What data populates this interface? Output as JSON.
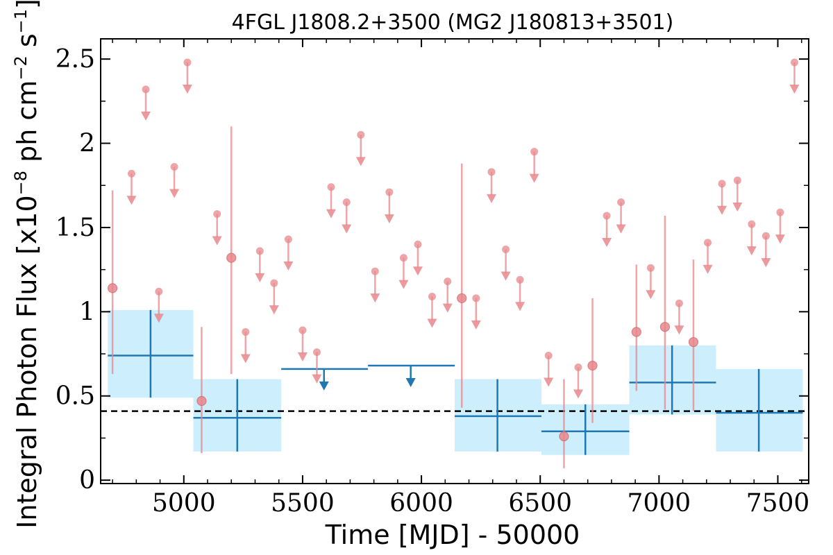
{
  "chart_data": {
    "type": "scatter",
    "title": "4FGL J1808.2+3500 (MG2 J180813+3501)",
    "xlabel": "Time [MJD] - 50000",
    "ylabel": "Integral Photon Flux [x10",
    "ylabel_exp": "−8",
    "ylabel_mid": " ph cm",
    "ylabel_exp2": "−2",
    "ylabel_end": " s",
    "ylabel_exp3": "−1",
    "ylabel_close": "]",
    "xlim": [
      4650,
      7630
    ],
    "ylim": [
      -0.02,
      2.62
    ],
    "xticks": [
      5000,
      5500,
      6000,
      6500,
      7000,
      7500
    ],
    "xtick_labels": [
      "5000",
      "5500",
      "6000",
      "6500",
      "7000",
      "7500"
    ],
    "yticks": [
      0,
      0.5,
      1,
      1.5,
      2,
      2.5
    ],
    "ytick_labels": [
      "0",
      "0.5",
      "1",
      "1.5",
      "2",
      "2.5"
    ],
    "average_flux": 0.41,
    "colors": {
      "short_bins": "#e8878b",
      "long_bins": "#1f77b4",
      "long_band": "#cdeefd",
      "average_line": "#000000"
    },
    "short_detections": [
      {
        "x": 4700,
        "y": 1.14,
        "lo": 0.63,
        "hi": 1.72
      },
      {
        "x": 5075,
        "y": 0.47,
        "lo": 0.16,
        "hi": 0.91
      },
      {
        "x": 5200,
        "y": 1.32,
        "lo": 0.63,
        "hi": 2.1
      },
      {
        "x": 6170,
        "y": 1.08,
        "lo": 0.43,
        "hi": 1.88
      },
      {
        "x": 6600,
        "y": 0.26,
        "lo": 0.07,
        "hi": 0.6
      },
      {
        "x": 6720,
        "y": 0.68,
        "lo": 0.34,
        "hi": 1.08
      },
      {
        "x": 6905,
        "y": 0.88,
        "lo": 0.53,
        "hi": 1.28
      },
      {
        "x": 7025,
        "y": 0.91,
        "lo": 0.42,
        "hi": 1.57
      },
      {
        "x": 7145,
        "y": 0.82,
        "lo": 0.41,
        "hi": 1.31
      }
    ],
    "short_upper_limits": [
      {
        "x": 4780,
        "y": 1.82
      },
      {
        "x": 4840,
        "y": 2.32
      },
      {
        "x": 4895,
        "y": 1.12
      },
      {
        "x": 4960,
        "y": 1.86
      },
      {
        "x": 5015,
        "y": 2.48
      },
      {
        "x": 5140,
        "y": 1.58
      },
      {
        "x": 5260,
        "y": 0.88
      },
      {
        "x": 5320,
        "y": 1.36
      },
      {
        "x": 5380,
        "y": 1.17
      },
      {
        "x": 5440,
        "y": 1.43
      },
      {
        "x": 5500,
        "y": 0.89
      },
      {
        "x": 5560,
        "y": 0.76
      },
      {
        "x": 5620,
        "y": 1.74
      },
      {
        "x": 5685,
        "y": 1.65
      },
      {
        "x": 5745,
        "y": 2.05
      },
      {
        "x": 5805,
        "y": 1.24
      },
      {
        "x": 5865,
        "y": 1.71
      },
      {
        "x": 5925,
        "y": 1.32
      },
      {
        "x": 5985,
        "y": 1.4
      },
      {
        "x": 6045,
        "y": 1.09
      },
      {
        "x": 6110,
        "y": 1.18
      },
      {
        "x": 6230,
        "y": 1.08
      },
      {
        "x": 6295,
        "y": 1.83
      },
      {
        "x": 6355,
        "y": 1.37
      },
      {
        "x": 6415,
        "y": 1.19
      },
      {
        "x": 6475,
        "y": 1.95
      },
      {
        "x": 6535,
        "y": 0.74
      },
      {
        "x": 6660,
        "y": 0.67
      },
      {
        "x": 6780,
        "y": 1.57
      },
      {
        "x": 6840,
        "y": 1.65
      },
      {
        "x": 6965,
        "y": 1.26
      },
      {
        "x": 7085,
        "y": 1.05
      },
      {
        "x": 7205,
        "y": 1.41
      },
      {
        "x": 7265,
        "y": 1.76
      },
      {
        "x": 7330,
        "y": 1.78
      },
      {
        "x": 7390,
        "y": 1.52
      },
      {
        "x": 7450,
        "y": 1.45
      },
      {
        "x": 7510,
        "y": 1.59
      },
      {
        "x": 7570,
        "y": 2.48
      }
    ],
    "long_detections": [
      {
        "x0": 4680,
        "x1": 5040,
        "x": 4860,
        "y": 0.74,
        "lo": 0.49,
        "hi": 1.01
      },
      {
        "x0": 5040,
        "x1": 5410,
        "x": 5225,
        "y": 0.37,
        "lo": 0.17,
        "hi": 0.6
      },
      {
        "x0": 6140,
        "x1": 6505,
        "x": 6320,
        "y": 0.38,
        "lo": 0.17,
        "hi": 0.6
      },
      {
        "x0": 6505,
        "x1": 6875,
        "x": 6690,
        "y": 0.29,
        "lo": 0.15,
        "hi": 0.45
      },
      {
        "x0": 6875,
        "x1": 7240,
        "x": 7055,
        "y": 0.58,
        "lo": 0.39,
        "hi": 0.8
      },
      {
        "x0": 7240,
        "x1": 7605,
        "x": 7420,
        "y": 0.4,
        "lo": 0.17,
        "hi": 0.66
      }
    ],
    "long_upper_limits": [
      {
        "x0": 5410,
        "x1": 5775,
        "x": 5590,
        "y": 0.66
      },
      {
        "x0": 5775,
        "x1": 6140,
        "x": 5955,
        "y": 0.68
      }
    ]
  }
}
